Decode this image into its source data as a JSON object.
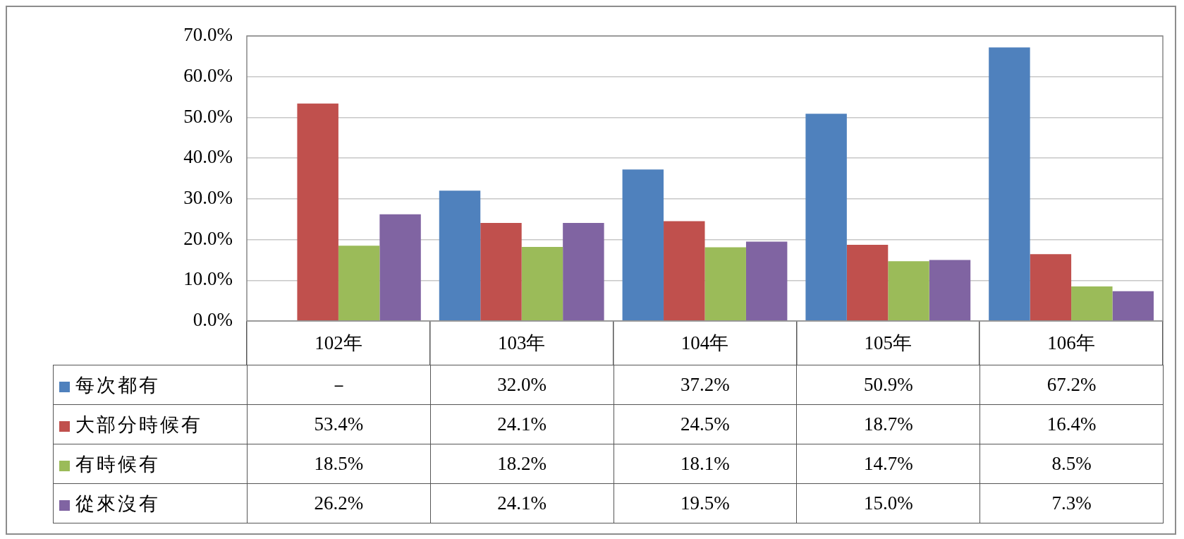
{
  "chart_data": {
    "type": "bar",
    "categories": [
      "102年",
      "103年",
      "104年",
      "105年",
      "106年"
    ],
    "series": [
      {
        "name": "每次都有",
        "color": "#4f81bd",
        "values": [
          null,
          32.0,
          37.2,
          50.9,
          67.2
        ],
        "value_labels": [
          "－",
          "32.0%",
          "37.2%",
          "50.9%",
          "67.2%"
        ]
      },
      {
        "name": "大部分時候有",
        "color": "#c0504d",
        "values": [
          53.4,
          24.1,
          24.5,
          18.7,
          16.4
        ],
        "value_labels": [
          "53.4%",
          "24.1%",
          "24.5%",
          "18.7%",
          "16.4%"
        ]
      },
      {
        "name": "有時候有",
        "color": "#9bbb59",
        "values": [
          18.5,
          18.2,
          18.1,
          14.7,
          8.5
        ],
        "value_labels": [
          "18.5%",
          "18.2%",
          "18.1%",
          "14.7%",
          "8.5%"
        ]
      },
      {
        "name": "從來沒有",
        "color": "#8064a2",
        "values": [
          26.2,
          24.1,
          19.5,
          15.0,
          7.3
        ],
        "value_labels": [
          "26.2%",
          "24.1%",
          "19.5%",
          "15.0%",
          "7.3%"
        ]
      }
    ],
    "ylim": [
      0,
      70
    ],
    "yticks": [
      {
        "value": 0,
        "label": "0.0%"
      },
      {
        "value": 10,
        "label": "10.0%"
      },
      {
        "value": 20,
        "label": "20.0%"
      },
      {
        "value": 30,
        "label": "30.0%"
      },
      {
        "value": 40,
        "label": "40.0%"
      },
      {
        "value": 50,
        "label": "50.0%"
      },
      {
        "value": 60,
        "label": "60.0%"
      },
      {
        "value": 70,
        "label": "70.0%"
      }
    ],
    "grid": "y",
    "legend": "bottom"
  }
}
